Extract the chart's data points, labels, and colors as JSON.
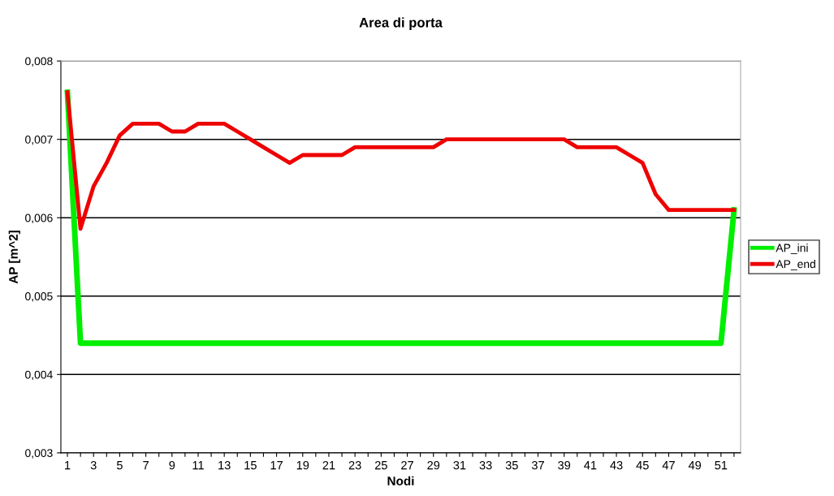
{
  "chart_data": {
    "type": "line",
    "title": "Area di porta",
    "xlabel": "Nodi",
    "ylabel": "AP [m^2]",
    "categories": [
      "1",
      null,
      "3",
      null,
      "5",
      null,
      "7",
      null,
      "9",
      null,
      "11",
      null,
      "13",
      null,
      "15",
      null,
      "17",
      null,
      "19",
      null,
      "21",
      null,
      "23",
      null,
      "25",
      null,
      "27",
      null,
      "29",
      null,
      "31",
      null,
      "33",
      null,
      "35",
      null,
      "37",
      null,
      "39",
      null,
      "41",
      null,
      "43",
      null,
      "45",
      null,
      "47",
      null,
      "49",
      null,
      "51",
      null
    ],
    "series": [
      {
        "name": "AP_ini",
        "color": "#00ee00",
        "values": [
          0.0076,
          0.0044,
          0.0044,
          0.0044,
          0.0044,
          0.0044,
          0.0044,
          0.0044,
          0.0044,
          0.0044,
          0.0044,
          0.0044,
          0.0044,
          0.0044,
          0.0044,
          0.0044,
          0.0044,
          0.0044,
          0.0044,
          0.0044,
          0.0044,
          0.0044,
          0.0044,
          0.0044,
          0.0044,
          0.0044,
          0.0044,
          0.0044,
          0.0044,
          0.0044,
          0.0044,
          0.0044,
          0.0044,
          0.0044,
          0.0044,
          0.0044,
          0.0044,
          0.0044,
          0.0044,
          0.0044,
          0.0044,
          0.0044,
          0.0044,
          0.0044,
          0.0044,
          0.0044,
          0.0044,
          0.0044,
          0.0044,
          0.0044,
          0.0044,
          0.0061
        ]
      },
      {
        "name": "AP_end",
        "color": "#ee0000",
        "values": [
          0.0076,
          0.00586,
          0.0064,
          0.0067,
          0.00705,
          0.0072,
          0.0072,
          0.0072,
          0.0071,
          0.0071,
          0.0072,
          0.0072,
          0.0072,
          0.0071,
          0.007,
          0.0069,
          0.0068,
          0.0067,
          0.0068,
          0.0068,
          0.0068,
          0.0068,
          0.0069,
          0.0069,
          0.0069,
          0.0069,
          0.0069,
          0.0069,
          0.0069,
          0.007,
          0.007,
          0.007,
          0.007,
          0.007,
          0.007,
          0.007,
          0.007,
          0.007,
          0.007,
          0.0069,
          0.0069,
          0.0069,
          0.0069,
          0.0068,
          0.0067,
          0.0063,
          0.0061,
          0.0061,
          0.0061,
          0.0061,
          0.0061,
          0.0061
        ]
      }
    ],
    "ylim": [
      0.003,
      0.008
    ],
    "yticks": [
      {
        "value": 0.003,
        "label": "0,003"
      },
      {
        "value": 0.004,
        "label": "0,004"
      },
      {
        "value": 0.005,
        "label": "0,005"
      },
      {
        "value": 0.006,
        "label": "0,006"
      },
      {
        "value": 0.007,
        "label": "0,007"
      },
      {
        "value": 0.008,
        "label": "0,008"
      }
    ],
    "grid": "y",
    "legend": "right",
    "marker": "none",
    "line_style": "solid"
  }
}
